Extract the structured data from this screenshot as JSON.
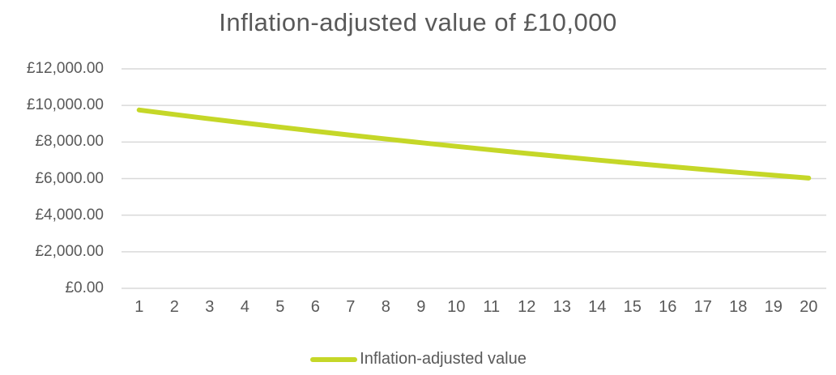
{
  "chart_data": {
    "type": "line",
    "title": "Inflation-adjusted value of £10,000",
    "x": [
      1,
      2,
      3,
      4,
      5,
      6,
      7,
      8,
      9,
      10,
      11,
      12,
      13,
      14,
      15,
      16,
      17,
      18,
      19,
      20
    ],
    "series": [
      {
        "name": "Inflation-adjusted value",
        "values": [
          9750,
          9506,
          9269,
          9037,
          8811,
          8591,
          8376,
          8167,
          7962,
          7763,
          7569,
          7380,
          7195,
          7016,
          6840,
          6669,
          6502,
          6340,
          6181,
          6027
        ],
        "color": "#c5d728"
      }
    ],
    "ylim": [
      0,
      12000
    ],
    "ytick_step": 2000,
    "ytick_labels": [
      "£0.00",
      "£2,000.00",
      "£4,000.00",
      "£6,000.00",
      "£8,000.00",
      "£10,000.00",
      "£12,000.00"
    ],
    "xtick_labels": [
      "1",
      "2",
      "3",
      "4",
      "5",
      "6",
      "7",
      "8",
      "9",
      "10",
      "11",
      "12",
      "13",
      "14",
      "15",
      "16",
      "17",
      "18",
      "19",
      "20"
    ],
    "grid": true,
    "legend_position": "bottom",
    "colors": {
      "text": "#595959",
      "gridline": "#d9d9d9",
      "background": "#ffffff"
    }
  }
}
